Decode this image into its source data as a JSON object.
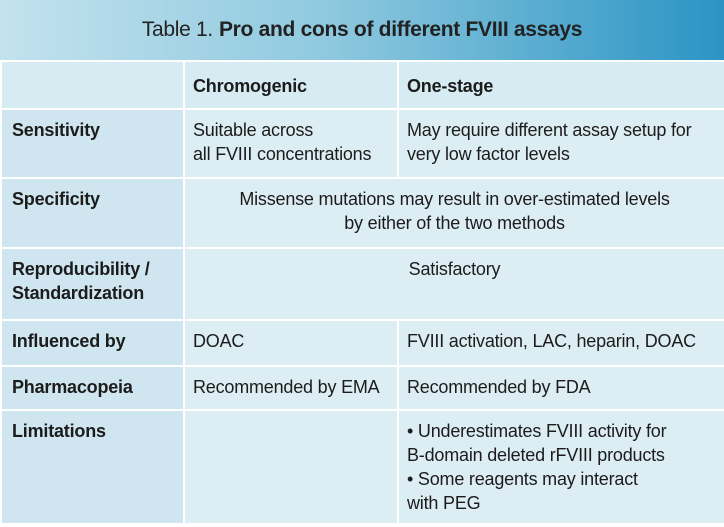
{
  "title": {
    "prefix": "Table 1.",
    "main": "Pro and cons of different FVIII assays"
  },
  "columns": {
    "chromogenic": "Chromogenic",
    "one_stage": "One-stage"
  },
  "rows": {
    "sensitivity": {
      "label": "Sensitivity",
      "chromogenic": "Suitable across\nall FVIII concentrations",
      "one_stage": "May require different assay setup for\nvery low factor levels"
    },
    "specificity": {
      "label": "Specificity",
      "both": "Missense mutations may result in over-estimated levels\nby either of the two methods"
    },
    "reproducibility": {
      "label": "Reproducibility /\nStandardization",
      "both": "Satisfactory"
    },
    "influenced_by": {
      "label": "Influenced by",
      "chromogenic": "DOAC",
      "one_stage": "FVIII activation, LAC, heparin, DOAC"
    },
    "pharmacopeia": {
      "label": "Pharmacopeia",
      "chromogenic": "Recommended by EMA",
      "one_stage": "Recommended by FDA"
    },
    "limitations": {
      "label": "Limitations",
      "chromogenic": "",
      "one_stage_bullets": [
        "• Underestimates FVIII activity for\nB-domain deleted rFVIII products",
        "• Some reagents may interact\nwith PEG"
      ]
    }
  }
}
